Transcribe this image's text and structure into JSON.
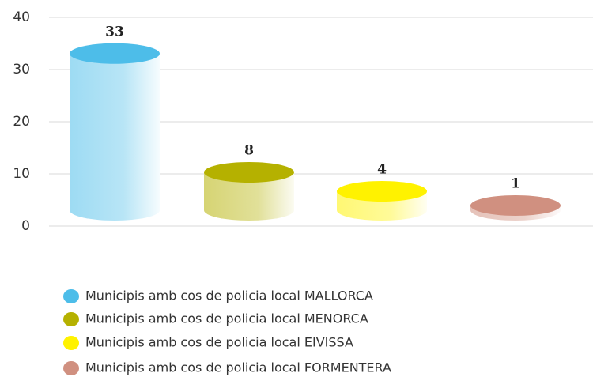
{
  "chart_data": {
    "type": "cylinder",
    "categories": [
      "Municipis amb cos de policia local MALLORCA",
      "Municipis amb cos de policia local MENORCA",
      "Municipis amb cos de policia local EIVISSA",
      "Municipis amb cos de policia local FORMENTERA"
    ],
    "values": [
      33,
      8,
      4,
      1
    ],
    "colors": [
      "#4dbde9",
      "#b5b100",
      "#fff200",
      "#d09080"
    ],
    "ylim": [
      0,
      40
    ],
    "yticks": [
      0,
      10,
      20,
      30,
      40
    ],
    "grid": true
  }
}
